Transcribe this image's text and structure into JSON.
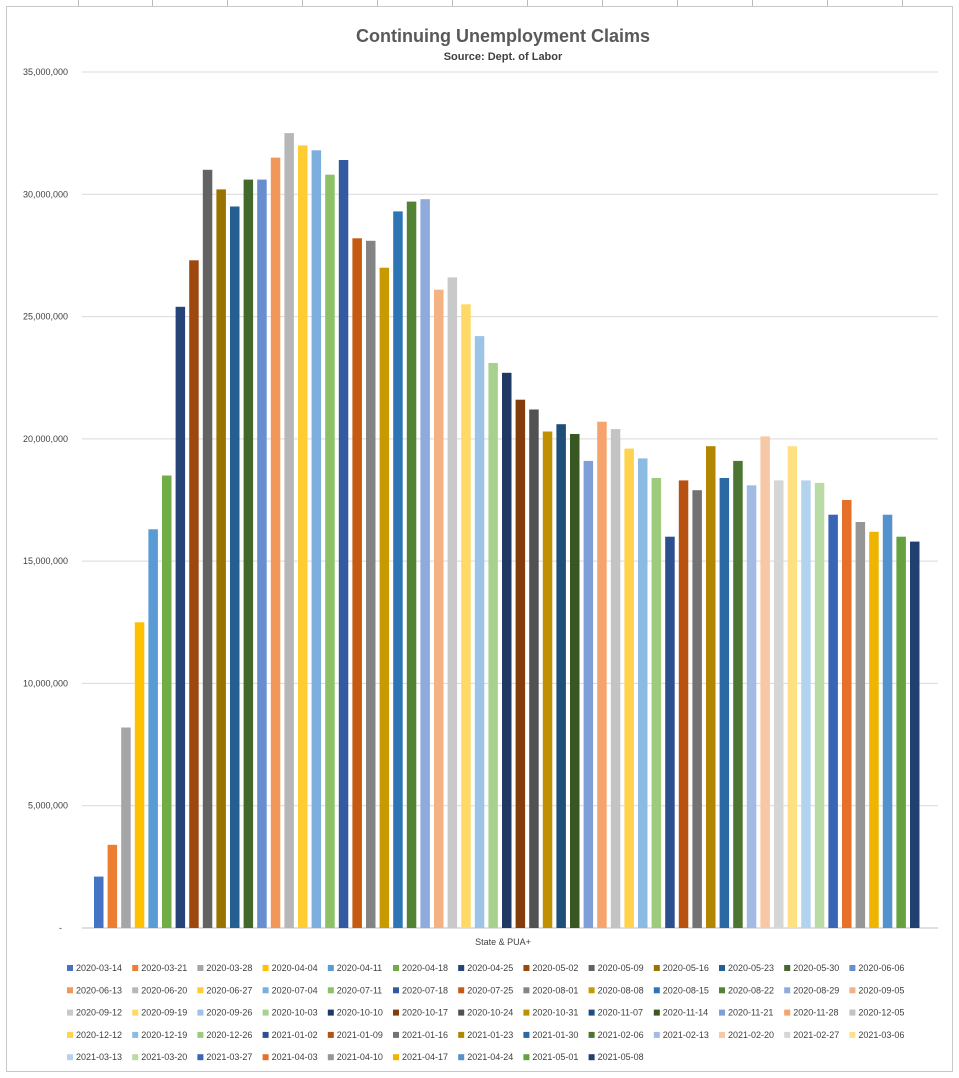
{
  "chart_data": {
    "type": "bar",
    "title": "Continuing Unemployment Claims",
    "subtitle": "Source: Dept. of Labor",
    "xlabel": "State & PUA+",
    "ylabel": "",
    "ylim": [
      0,
      35000000
    ],
    "yticks": [
      "35,000,000",
      "30,000,000",
      "25,000,000",
      "20,000,000",
      "15,000,000",
      "10,000,000",
      "5,000,000",
      "-"
    ],
    "ytick_values": [
      35000000,
      30000000,
      25000000,
      20000000,
      15000000,
      10000000,
      5000000,
      0
    ],
    "grid": true,
    "legend_position": "bottom",
    "series": [
      {
        "name": "2020-03-14",
        "value": 2100000,
        "color": "#4472c4"
      },
      {
        "name": "2020-03-21",
        "value": 3400000,
        "color": "#ed7d31"
      },
      {
        "name": "2020-03-28",
        "value": 8200000,
        "color": "#a5a5a5"
      },
      {
        "name": "2020-04-04",
        "value": 12500000,
        "color": "#ffc000"
      },
      {
        "name": "2020-04-11",
        "value": 16300000,
        "color": "#5b9bd5"
      },
      {
        "name": "2020-04-18",
        "value": 18500000,
        "color": "#70ad47"
      },
      {
        "name": "2020-04-25",
        "value": 25400000,
        "color": "#264478"
      },
      {
        "name": "2020-05-02",
        "value": 27300000,
        "color": "#9e480e"
      },
      {
        "name": "2020-05-09",
        "value": 31000000,
        "color": "#636363"
      },
      {
        "name": "2020-05-16",
        "value": 30200000,
        "color": "#997300"
      },
      {
        "name": "2020-05-23",
        "value": 29500000,
        "color": "#255e91"
      },
      {
        "name": "2020-05-30",
        "value": 30600000,
        "color": "#43682b"
      },
      {
        "name": "2020-06-06",
        "value": 30600000,
        "color": "#698ed0"
      },
      {
        "name": "2020-06-13",
        "value": 31500000,
        "color": "#f1975a"
      },
      {
        "name": "2020-06-20",
        "value": 32500000,
        "color": "#b7b7b7"
      },
      {
        "name": "2020-06-27",
        "value": 32000000,
        "color": "#ffcd33"
      },
      {
        "name": "2020-07-04",
        "value": 31800000,
        "color": "#7cafdd"
      },
      {
        "name": "2020-07-11",
        "value": 30800000,
        "color": "#8cc168"
      },
      {
        "name": "2020-07-18",
        "value": 31400000,
        "color": "#335aa1"
      },
      {
        "name": "2020-07-25",
        "value": 28200000,
        "color": "#c55a11"
      },
      {
        "name": "2020-08-01",
        "value": 28100000,
        "color": "#848484"
      },
      {
        "name": "2020-08-08",
        "value": 27000000,
        "color": "#c99a00"
      },
      {
        "name": "2020-08-15",
        "value": 29300000,
        "color": "#2e75b6"
      },
      {
        "name": "2020-08-22",
        "value": 29700000,
        "color": "#548235"
      },
      {
        "name": "2020-08-29",
        "value": 29800000,
        "color": "#8faadc"
      },
      {
        "name": "2020-09-05",
        "value": 26100000,
        "color": "#f4b183"
      },
      {
        "name": "2020-09-12",
        "value": 26600000,
        "color": "#c9c9c9"
      },
      {
        "name": "2020-09-19",
        "value": 25500000,
        "color": "#ffd966"
      },
      {
        "name": "2020-09-26",
        "value": 24200000,
        "color": "#9dc3e6"
      },
      {
        "name": "2020-10-03",
        "value": 23100000,
        "color": "#a9d18e"
      },
      {
        "name": "2020-10-10",
        "value": 22700000,
        "color": "#203864"
      },
      {
        "name": "2020-10-17",
        "value": 21600000,
        "color": "#843c0c"
      },
      {
        "name": "2020-10-24",
        "value": 21200000,
        "color": "#525252"
      },
      {
        "name": "2020-10-31",
        "value": 20300000,
        "color": "#bf9000"
      },
      {
        "name": "2020-11-07",
        "value": 20600000,
        "color": "#1f4e79"
      },
      {
        "name": "2020-11-14",
        "value": 20200000,
        "color": "#385723"
      },
      {
        "name": "2020-11-21",
        "value": 19100000,
        "color": "#7f9fd8"
      },
      {
        "name": "2020-11-28",
        "value": 20700000,
        "color": "#f4a46c"
      },
      {
        "name": "2020-12-05",
        "value": 20400000,
        "color": "#c3c3c3"
      },
      {
        "name": "2020-12-12",
        "value": 19600000,
        "color": "#ffd34d"
      },
      {
        "name": "2020-12-19",
        "value": 19200000,
        "color": "#8bbbe2"
      },
      {
        "name": "2020-12-26",
        "value": 18400000,
        "color": "#9ccb7c"
      },
      {
        "name": "2021-01-02",
        "value": 16000000,
        "color": "#2b4f8f"
      },
      {
        "name": "2021-01-09",
        "value": 18300000,
        "color": "#b85210"
      },
      {
        "name": "2021-01-16",
        "value": 17900000,
        "color": "#737373"
      },
      {
        "name": "2021-01-23",
        "value": 19700000,
        "color": "#b38600"
      },
      {
        "name": "2021-01-30",
        "value": 18400000,
        "color": "#2a69a3"
      },
      {
        "name": "2021-02-06",
        "value": 19100000,
        "color": "#4b7530"
      },
      {
        "name": "2021-02-13",
        "value": 18100000,
        "color": "#a3bbe4"
      },
      {
        "name": "2021-02-20",
        "value": 20100000,
        "color": "#f8c8a6"
      },
      {
        "name": "2021-02-27",
        "value": 18300000,
        "color": "#d6d6d6"
      },
      {
        "name": "2021-03-06",
        "value": 19700000,
        "color": "#ffe083"
      },
      {
        "name": "2021-03-13",
        "value": 18300000,
        "color": "#b3d2ee"
      },
      {
        "name": "2021-03-20",
        "value": 18200000,
        "color": "#bbdba6"
      },
      {
        "name": "2021-03-27",
        "value": 16900000,
        "color": "#3a65b5"
      },
      {
        "name": "2021-04-03",
        "value": 17500000,
        "color": "#e4702a"
      },
      {
        "name": "2021-04-10",
        "value": 16600000,
        "color": "#969696"
      },
      {
        "name": "2021-04-17",
        "value": 16200000,
        "color": "#f0b400"
      },
      {
        "name": "2021-04-24",
        "value": 16900000,
        "color": "#5592cd"
      },
      {
        "name": "2021-05-01",
        "value": 16000000,
        "color": "#66a13f"
      },
      {
        "name": "2021-05-08",
        "value": 15800000,
        "color": "#22406f"
      }
    ]
  }
}
